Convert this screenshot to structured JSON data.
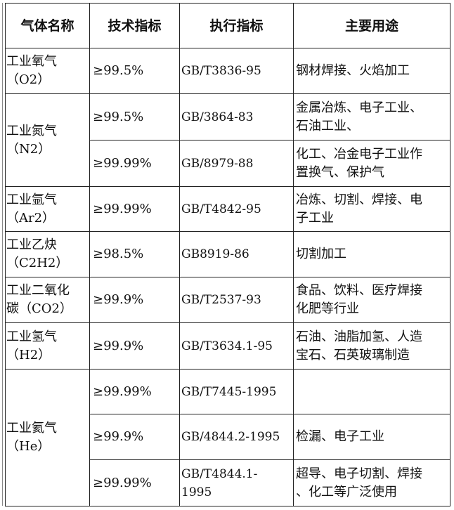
{
  "headers": [
    "气体名称",
    "技术指标",
    "执行指标",
    "主要用途"
  ],
  "rows": [
    {
      "name": "工业氧气\n（O2）",
      "spec": "≥99.5%",
      "standard": "GB/T3836-95",
      "use": "钢材焊接、火焰加工"
    },
    {
      "name": "工业氮气\n（N2）",
      "spec": "≥99.5%",
      "standard": "GB/3864-83",
      "use": "金属冶炼、电子工业、\n石油工业、"
    },
    {
      "spec": "≥99.99%",
      "standard": "GB/8979-88",
      "use": "化工、冶金电子工业作\n置换气、保护气"
    },
    {
      "name": "工业氩气\n（Ar2）",
      "spec": "≥99.99%",
      "standard": "GB/T4842-95",
      "use": "冶炼、切割、焊接、电\n子工业"
    },
    {
      "name": "工业乙炔\n（C2H2）",
      "spec": "≥98.5%",
      "standard": "GB8919-86",
      "use": "切割加工"
    },
    {
      "name": "工业二氧化\n碳（CO2）",
      "spec": "≥99.9%",
      "standard": "GB/T2537-93",
      "use": "食品、饮料、医疗焊接\n化肥等行业"
    },
    {
      "name": "工业氢气\n（H2）",
      "spec": "≥99.9%",
      "standard": "GB/T3634.1-95",
      "use": "石油、油脂加氢、人造\n宝石、石英玻璃制造"
    },
    {
      "name": "工业氦气\n（He）",
      "spec": "≥99.99%",
      "standard": "GB/T7445-1995",
      "use": ""
    },
    {
      "spec": "≥99.9%",
      "standard": "GB/4844.2-1995",
      "use": "检漏、电子工业"
    },
    {
      "spec": "≥99.99%",
      "standard": "GB/T4844.1-\n1995",
      "use": "超导、电子切割、焊接\n、化工等广泛使用"
    }
  ]
}
